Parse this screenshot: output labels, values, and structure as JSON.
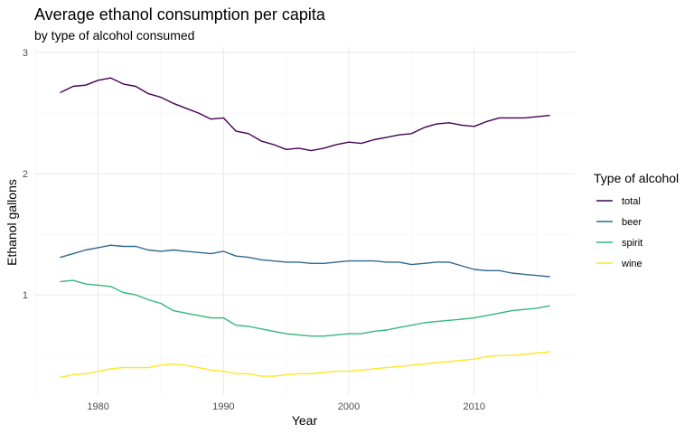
{
  "chart_data": {
    "type": "line",
    "title": "Average ethanol consumption per capita",
    "subtitle": "by type of alcohol consumed",
    "xlabel": "Year",
    "ylabel": "Ethanol gallons",
    "xlim": [
      1977,
      2016
    ],
    "ylim": [
      0.3,
      3
    ],
    "x_ticks": [
      1980,
      1990,
      2000,
      2010
    ],
    "y_ticks": [
      1,
      2,
      3
    ],
    "x_minor_ticks": [
      1975,
      1985,
      1995,
      2005,
      2015
    ],
    "y_minor_ticks": [
      0.5,
      1.5,
      2.5
    ],
    "grid": true,
    "legend_title": "Type of alcohol",
    "legend_position": "right",
    "x": [
      1977,
      1978,
      1979,
      1980,
      1981,
      1982,
      1983,
      1984,
      1985,
      1986,
      1987,
      1988,
      1989,
      1990,
      1991,
      1992,
      1993,
      1994,
      1995,
      1996,
      1997,
      1998,
      1999,
      2000,
      2001,
      2002,
      2003,
      2004,
      2005,
      2006,
      2007,
      2008,
      2009,
      2010,
      2011,
      2012,
      2013,
      2014,
      2015,
      2016
    ],
    "series": [
      {
        "name": "total",
        "color": "#440154",
        "values": [
          2.67,
          2.72,
          2.73,
          2.77,
          2.79,
          2.74,
          2.72,
          2.66,
          2.63,
          2.58,
          2.54,
          2.5,
          2.45,
          2.46,
          2.35,
          2.33,
          2.27,
          2.24,
          2.2,
          2.21,
          2.19,
          2.21,
          2.24,
          2.26,
          2.25,
          2.28,
          2.3,
          2.32,
          2.33,
          2.38,
          2.41,
          2.42,
          2.4,
          2.39,
          2.43,
          2.46,
          2.46,
          2.46,
          2.47,
          2.48
        ]
      },
      {
        "name": "beer",
        "color": "#31688e",
        "values": [
          1.31,
          1.34,
          1.37,
          1.39,
          1.41,
          1.4,
          1.4,
          1.37,
          1.36,
          1.37,
          1.36,
          1.35,
          1.34,
          1.36,
          1.32,
          1.31,
          1.29,
          1.28,
          1.27,
          1.27,
          1.26,
          1.26,
          1.27,
          1.28,
          1.28,
          1.28,
          1.27,
          1.27,
          1.25,
          1.26,
          1.27,
          1.27,
          1.24,
          1.21,
          1.2,
          1.2,
          1.18,
          1.17,
          1.16,
          1.15
        ]
      },
      {
        "name": "spirit",
        "color": "#35b779",
        "values": [
          1.11,
          1.12,
          1.09,
          1.08,
          1.07,
          1.02,
          1.0,
          0.96,
          0.93,
          0.87,
          0.85,
          0.83,
          0.81,
          0.81,
          0.75,
          0.74,
          0.72,
          0.7,
          0.68,
          0.67,
          0.66,
          0.66,
          0.67,
          0.68,
          0.68,
          0.7,
          0.71,
          0.73,
          0.75,
          0.77,
          0.78,
          0.79,
          0.8,
          0.81,
          0.83,
          0.85,
          0.87,
          0.88,
          0.89,
          0.91
        ]
      },
      {
        "name": "wine",
        "color": "#fde725",
        "values": [
          0.32,
          0.34,
          0.35,
          0.37,
          0.39,
          0.4,
          0.4,
          0.4,
          0.42,
          0.43,
          0.42,
          0.4,
          0.38,
          0.37,
          0.35,
          0.35,
          0.33,
          0.33,
          0.34,
          0.35,
          0.35,
          0.36,
          0.37,
          0.37,
          0.38,
          0.39,
          0.4,
          0.41,
          0.42,
          0.43,
          0.44,
          0.45,
          0.46,
          0.47,
          0.49,
          0.5,
          0.5,
          0.51,
          0.52,
          0.53
        ]
      }
    ]
  }
}
